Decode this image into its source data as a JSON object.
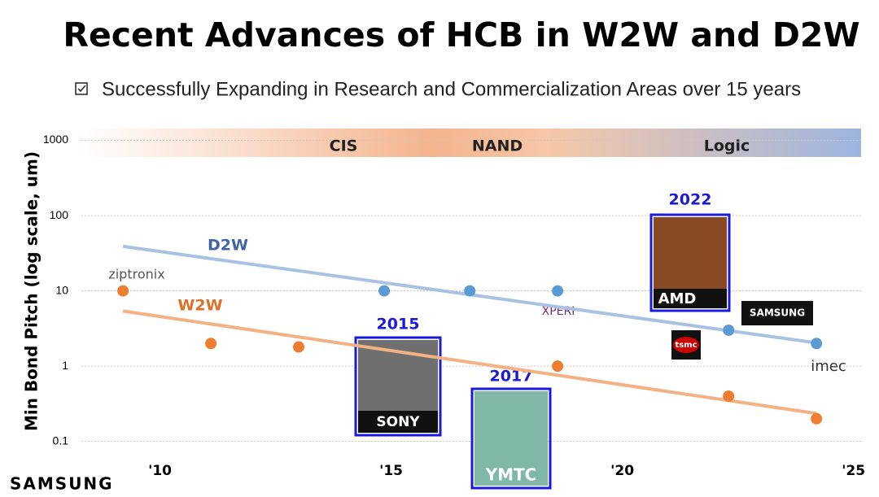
{
  "header": {
    "title": "Recent Advances of HCB in W2W and D2W",
    "subtitle": "Successfully Expanding in Research and Commercialization Areas over 15 years"
  },
  "chart_data": {
    "type": "scatter",
    "ylabel": "Min Bond Pitch (log scale, um)",
    "log_y": true,
    "grid": true,
    "xlim": [
      2008.3,
      2025.2
    ],
    "ylim": [
      0.07,
      1300
    ],
    "xticks": [
      {
        "value": 2010,
        "label": "'10"
      },
      {
        "value": 2015,
        "label": "'15"
      },
      {
        "value": 2020,
        "label": "'20"
      },
      {
        "value": 2025,
        "label": "'25"
      }
    ],
    "yticks": [
      0.1,
      1,
      10,
      100,
      1000
    ],
    "phases": [
      "CIS",
      "NAND",
      "Logic"
    ],
    "series": [
      {
        "name": "D2W",
        "color": "#5b9bd5",
        "trend_color": "#a9c1e2",
        "x": [
          2014.85,
          2016.7,
          2018.6,
          2022.3,
          2024.2
        ],
        "values": [
          10,
          10,
          10,
          3,
          2
        ],
        "trend": {
          "x": [
            2009.2,
            2024.2
          ],
          "values": [
            39,
            2.04
          ]
        }
      },
      {
        "name": "W2W",
        "color": "#ed7d31",
        "trend_color": "#f4b183",
        "x": [
          2009.2,
          2011.1,
          2013,
          2018.6,
          2022.3,
          2024.2
        ],
        "values": [
          10,
          2,
          1.8,
          1,
          0.4,
          0.2
        ],
        "trend": {
          "x": [
            2009.2,
            2024.2
          ],
          "values": [
            5.4,
            0.235
          ]
        }
      }
    ],
    "milestones": [
      "2015",
      "2017",
      "2022"
    ],
    "logos": [
      "ziptronix",
      "XPERI",
      "SAMSUNG",
      "tsmc",
      "imec",
      "SONY",
      "YMTC",
      "AMD"
    ]
  },
  "footer": {
    "brand": "SAMSUNG"
  }
}
